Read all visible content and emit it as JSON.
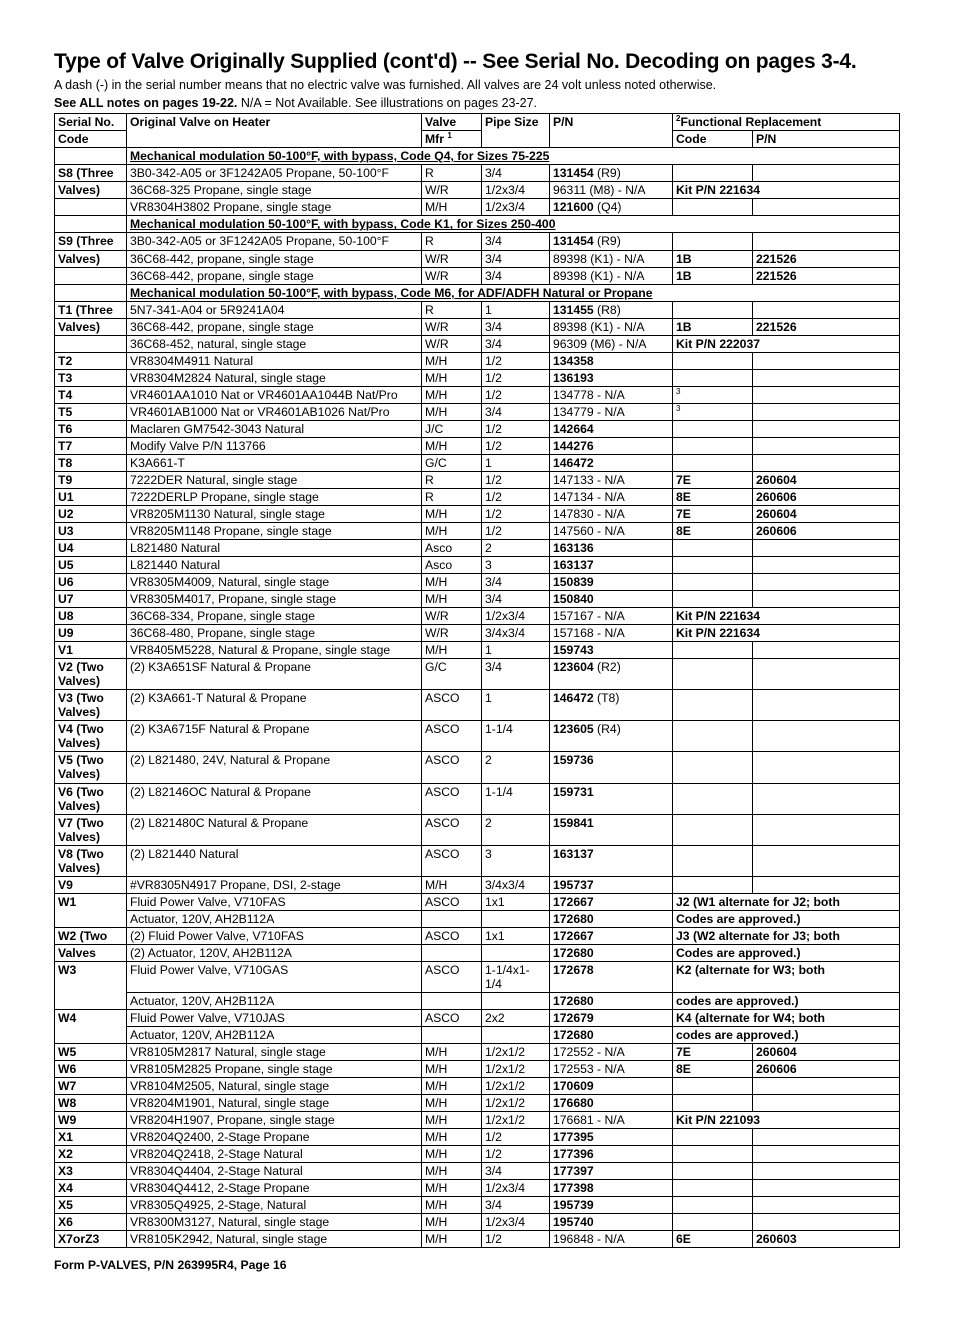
{
  "title": "Type of Valve Originally Supplied (cont'd) -- See Serial No. Decoding on pages 3-4.",
  "intro1": "A dash (-) in the serial number means that no electric valve was furnished. All valves are 24 volt unless noted otherwise.",
  "intro2_bold": "See ALL notes on pages 19-22.",
  "intro2_rest": " N/A = Not Available. See illustrations on pages 23-27.",
  "footer": "Form P-VALVES, P/N 263995R4, Page 16",
  "columns": {
    "c1a": "Serial No.",
    "c1b": "Code",
    "c2": "Original Valve on Heater",
    "c3a": "Valve",
    "c3b": "Mfr ",
    "c3sup": "1",
    "c4": "Pipe Size",
    "c5": "P/N",
    "c6top": "Functional Replacement",
    "c6sup": "2",
    "c6a": "Code",
    "c6b": "P/N"
  },
  "rows": [
    {
      "type": "section",
      "span": 6,
      "text": "Mechanical modulation 50-100°F, with bypass, Code Q4, for Sizes 75-225"
    },
    {
      "serial": "S8 (Three",
      "valve": "3B0-342-A05 or 3F1242A05 Propane, 50-100°F",
      "mfr": "R",
      "pipe": "3/4",
      "pn": "131454",
      "pnx": " (R9)",
      "fcode": "",
      "fpn": ""
    },
    {
      "serial": "Valves)",
      "valve": "36C68-325 Propane, single stage",
      "mfr": "W/R",
      "pipe": "1/2x3/4",
      "pn": "",
      "pnx": "96311 (M8) - N/A",
      "fcode": "Kit P/N 221634",
      "fpn": "",
      "mergeF": true
    },
    {
      "serial": "",
      "valve": "VR8304H3802 Propane, single stage",
      "mfr": "M/H",
      "pipe": "1/2x3/4",
      "pn": "121600",
      "pnx": " (Q4)",
      "fcode": "",
      "fpn": ""
    },
    {
      "type": "section",
      "span": 6,
      "text": "Mechanical modulation 50-100°F, with bypass, Code K1, for Sizes 250-400"
    },
    {
      "serial": "S9 (Three",
      "valve": "3B0-342-A05 or 3F1242A05 Propane, 50-100°F",
      "mfr": "R",
      "pipe": "3/4",
      "pn": "131454",
      "pnx": " (R9)",
      "fcode": "",
      "fpn": ""
    },
    {
      "serial": "Valves)",
      "valve": "36C68-442, propane, single stage",
      "mfr": "W/R",
      "pipe": "3/4",
      "pn": "",
      "pnx": "89398 (K1) - N/A",
      "fcode": "1B",
      "fpn": "221526"
    },
    {
      "serial": "",
      "valve": "36C68-442, propane, single stage",
      "mfr": "W/R",
      "pipe": "3/4",
      "pn": "",
      "pnx": "89398 (K1) - N/A",
      "fcode": "1B",
      "fpn": "221526"
    },
    {
      "type": "section",
      "span": 6,
      "text": "Mechanical modulation 50-100°F, with bypass, Code M6, for ADF/ADFH Natural or Propane"
    },
    {
      "serial": "T1 (Three",
      "valve": "5N7-341-A04 or 5R9241A04",
      "mfr": "R",
      "pipe": "1",
      "pn": "131455",
      "pnx": " (R8)",
      "fcode": "",
      "fpn": ""
    },
    {
      "serial": "Valves)",
      "valve": "36C68-442, propane, single stage",
      "mfr": "W/R",
      "pipe": "3/4",
      "pn": "",
      "pnx": "89398 (K1) - N/A",
      "fcode": "1B",
      "fpn": "221526"
    },
    {
      "serial": "",
      "valve": "36C68-452, natural, single stage",
      "mfr": "W/R",
      "pipe": "3/4",
      "pn": "",
      "pnx": "96309 (M6) - N/A",
      "fcode": "Kit P/N 222037",
      "fpn": "",
      "mergeF": true
    },
    {
      "serial": "T2",
      "valve": "VR8304M4911 Natural",
      "mfr": "M/H",
      "pipe": "1/2",
      "pn": "134358",
      "pnx": "",
      "fcode": "",
      "fpn": ""
    },
    {
      "serial": "T3",
      "valve": "VR8304M2824 Natural, single stage",
      "mfr": "M/H",
      "pipe": "1/2",
      "pn": "136193",
      "pnx": "",
      "fcode": "",
      "fpn": ""
    },
    {
      "serial": "T4",
      "valve": "VR4601AA1010 Nat or VR4601AA1044B Nat/Pro",
      "mfr": "M/H",
      "pipe": "1/2",
      "pn": "",
      "pnx": "134778 - N/A",
      "fcode": "3",
      "fcodeSup": true,
      "fpn": ""
    },
    {
      "serial": "T5",
      "valve": "VR4601AB1000 Nat or VR4601AB1026 Nat/Pro",
      "mfr": "M/H",
      "pipe": "3/4",
      "pn": "",
      "pnx": "134779 - N/A",
      "fcode": "3",
      "fcodeSup": true,
      "fpn": ""
    },
    {
      "serial": "T6",
      "valve": "Maclaren GM7542-3043 Natural",
      "mfr": "J/C",
      "pipe": "1/2",
      "pn": "142664",
      "pnx": "",
      "fcode": "",
      "fpn": ""
    },
    {
      "serial": "T7",
      "valve": "Modify Valve P/N 113766",
      "mfr": "M/H",
      "pipe": "1/2",
      "pn": "144276",
      "pnx": "",
      "fcode": "",
      "fpn": ""
    },
    {
      "serial": "T8",
      "valve": "K3A661-T",
      "mfr": "G/C",
      "pipe": "1",
      "pn": "146472",
      "pnx": "",
      "fcode": "",
      "fpn": ""
    },
    {
      "serial": "T9",
      "valve": "7222DER Natural, single stage",
      "mfr": "R",
      "pipe": "1/2",
      "pn": "",
      "pnx": "147133 - N/A",
      "fcode": "7E",
      "fpn": "260604"
    },
    {
      "serial": "U1",
      "valve": "7222DERLP Propane, single stage",
      "mfr": "R",
      "pipe": "1/2",
      "pn": "",
      "pnx": "147134 - N/A",
      "fcode": "8E",
      "fpn": "260606"
    },
    {
      "serial": "U2",
      "valve": "VR8205M1130 Natural, single stage",
      "mfr": "M/H",
      "pipe": "1/2",
      "pn": "",
      "pnx": "147830 - N/A",
      "fcode": "7E",
      "fpn": "260604"
    },
    {
      "serial": "U3",
      "valve": "VR8205M1148 Propane, single stage",
      "mfr": "M/H",
      "pipe": "1/2",
      "pn": "",
      "pnx": "147560 - N/A",
      "fcode": "8E",
      "fpn": "260606"
    },
    {
      "serial": "U4",
      "valve": "L821480 Natural",
      "mfr": "Asco",
      "pipe": "2",
      "pn": "163136",
      "pnx": "",
      "fcode": "",
      "fpn": ""
    },
    {
      "serial": "U5",
      "valve": "L821440 Natural",
      "mfr": "Asco",
      "pipe": "3",
      "pn": "163137",
      "pnx": "",
      "fcode": "",
      "fpn": ""
    },
    {
      "serial": "U6",
      "valve": "VR8305M4009, Natural, single stage",
      "mfr": "M/H",
      "pipe": "3/4",
      "pn": "150839",
      "pnx": "",
      "fcode": "",
      "fpn": ""
    },
    {
      "serial": "U7",
      "valve": "VR8305M4017, Propane, single stage",
      "mfr": "M/H",
      "pipe": "3/4",
      "pn": "150840",
      "pnx": "",
      "fcode": "",
      "fpn": ""
    },
    {
      "serial": "U8",
      "valve": "36C68-334, Propane, single stage",
      "mfr": "W/R",
      "pipe": "1/2x3/4",
      "pn": "",
      "pnx": "157167 - N/A",
      "fcode": "Kit P/N 221634",
      "fpn": "",
      "mergeF": true
    },
    {
      "serial": "U9",
      "valve": "36C68-480, Propane, single stage",
      "mfr": "W/R",
      "pipe": "3/4x3/4",
      "pn": "",
      "pnx": "157168 - N/A",
      "fcode": "Kit P/N 221634",
      "fpn": "",
      "mergeF": true
    },
    {
      "serial": "V1",
      "valve": "VR8405M5228, Natural & Propane, single stage",
      "mfr": "M/H",
      "pipe": "1",
      "pn": "159743",
      "pnx": "",
      "fcode": "",
      "fpn": ""
    },
    {
      "serial": "V2 (Two Valves)",
      "valve": "(2) K3A651SF Natural & Propane",
      "mfr": "G/C",
      "pipe": "3/4",
      "pn": "123604",
      "pnx": " (R2)",
      "fcode": "",
      "fpn": ""
    },
    {
      "serial": "V3 (Two Valves)",
      "valve": "(2) K3A661-T Natural & Propane",
      "mfr": "ASCO",
      "pipe": "1",
      "pn": "146472",
      "pnx": " (T8)",
      "fcode": "",
      "fpn": ""
    },
    {
      "serial": "V4 (Two Valves)",
      "valve": "(2) K3A6715F Natural & Propane",
      "mfr": "ASCO",
      "pipe": "1-1/4",
      "pn": "123605",
      "pnx": " (R4)",
      "fcode": "",
      "fpn": ""
    },
    {
      "serial": "V5 (Two Valves)",
      "valve": "(2) L821480, 24V, Natural & Propane",
      "mfr": "ASCO",
      "pipe": "2",
      "pn": "159736",
      "pnx": "",
      "fcode": "",
      "fpn": ""
    },
    {
      "serial": "V6 (Two Valves)",
      "valve": "(2) L82146OC Natural & Propane",
      "mfr": "ASCO",
      "pipe": "1-1/4",
      "pn": "159731",
      "pnx": "",
      "fcode": "",
      "fpn": ""
    },
    {
      "serial": "V7 (Two Valves)",
      "valve": "(2) L821480C Natural & Propane",
      "mfr": "ASCO",
      "pipe": "2",
      "pn": "159841",
      "pnx": "",
      "fcode": "",
      "fpn": ""
    },
    {
      "serial": "V8 (Two Valves)",
      "valve": "(2) L821440 Natural",
      "mfr": "ASCO",
      "pipe": "3",
      "pn": "163137",
      "pnx": "",
      "fcode": "",
      "fpn": ""
    },
    {
      "serial": "V9",
      "valve": "#VR8305N4917 Propane, DSI, 2-stage",
      "mfr": "M/H",
      "pipe": "3/4x3/4",
      "pn": "195737",
      "pnx": "",
      "fcode": "",
      "fpn": ""
    },
    {
      "serial": "W1",
      "serialRowspan": 2,
      "valve": "Fluid Power Valve, V710FAS",
      "mfr": "ASCO",
      "pipe": "1x1",
      "pn": "172667",
      "pnx": "",
      "fcode": "J2 (W1 alternate for J2; both",
      "fpn": "",
      "mergeF": true
    },
    {
      "noSerial": true,
      "valve": "Actuator, 120V, AH2B112A",
      "mfr": "",
      "pipe": "",
      "pn": "172680",
      "pnx": "",
      "fcode": "Codes are approved.)",
      "fpn": "",
      "mergeF": true
    },
    {
      "serial": "W2 (Two",
      "valve": "(2) Fluid Power Valve, V710FAS",
      "mfr": "ASCO",
      "pipe": "1x1",
      "pn": "172667",
      "pnx": "",
      "fcode": "J3 (W2 alternate for J3; both",
      "fpn": "",
      "mergeF": true
    },
    {
      "serial": "Valves",
      "valve": "(2) Actuator, 120V, AH2B112A",
      "mfr": "",
      "pipe": "",
      "pn": "172680",
      "pnx": "",
      "fcode": "Codes are approved.)",
      "fpn": "",
      "mergeF": true
    },
    {
      "serial": "W3",
      "serialRowspan": 2,
      "valve": "Fluid Power Valve, V710GAS",
      "mfr": "ASCO",
      "pipe": "1-1/4x1-1/4",
      "pn": "172678",
      "pnx": "",
      "fcode": "K2 (alternate for W3; both",
      "fpn": "",
      "mergeF": true
    },
    {
      "noSerial": true,
      "valve": "Actuator, 120V, AH2B112A",
      "mfr": "",
      "pipe": "",
      "pn": "172680",
      "pnx": "",
      "fcode": "codes are approved.)",
      "fpn": "",
      "mergeF": true
    },
    {
      "serial": "W4",
      "serialRowspan": 2,
      "valve": "Fluid Power Valve, V710JAS",
      "mfr": "ASCO",
      "pipe": "2x2",
      "pn": "172679",
      "pnx": "",
      "fcode": "K4 (alternate for W4; both",
      "fpn": "",
      "mergeF": true
    },
    {
      "noSerial": true,
      "valve": "Actuator, 120V, AH2B112A",
      "mfr": "",
      "pipe": "",
      "pn": "172680",
      "pnx": "",
      "fcode": "codes are approved.)",
      "fpn": "",
      "mergeF": true
    },
    {
      "serial": "W5",
      "valve": "VR8105M2817 Natural, single stage",
      "mfr": "M/H",
      "pipe": "1/2x1/2",
      "pn": "",
      "pnx": "172552 - N/A",
      "fcode": "7E",
      "fpn": "260604"
    },
    {
      "serial": "W6",
      "valve": "VR8105M2825 Propane, single stage",
      "mfr": "M/H",
      "pipe": "1/2x1/2",
      "pn": "",
      "pnx": "172553 - N/A",
      "fcode": "8E",
      "fpn": "260606"
    },
    {
      "serial": "W7",
      "valve": "VR8104M2505, Natural, single stage",
      "mfr": "M/H",
      "pipe": "1/2x1/2",
      "pn": "170609",
      "pnx": "",
      "fcode": "",
      "fpn": ""
    },
    {
      "serial": "W8",
      "valve": "VR8204M1901, Natural, single stage",
      "mfr": "M/H",
      "pipe": "1/2x1/2",
      "pn": "176680",
      "pnx": "",
      "fcode": "",
      "fpn": ""
    },
    {
      "serial": "W9",
      "valve": "VR8204H1907, Propane, single stage",
      "mfr": "M/H",
      "pipe": "1/2x1/2",
      "pn": "",
      "pnx": "176681 - N/A",
      "fcode": "Kit P/N 221093",
      "fpn": "",
      "mergeF": true
    },
    {
      "serial": "X1",
      "valve": "VR8204Q2400, 2-Stage Propane",
      "mfr": "M/H",
      "pipe": "1/2",
      "pn": "177395",
      "pnx": "",
      "fcode": "",
      "fpn": ""
    },
    {
      "serial": "X2",
      "valve": "VR8204Q2418, 2-Stage Natural",
      "mfr": "M/H",
      "pipe": "1/2",
      "pn": "177396",
      "pnx": "",
      "fcode": "",
      "fpn": ""
    },
    {
      "serial": "X3",
      "valve": "VR8304Q4404, 2-Stage Natural",
      "mfr": "M/H",
      "pipe": "3/4",
      "pn": "177397",
      "pnx": "",
      "fcode": "",
      "fpn": ""
    },
    {
      "serial": "X4",
      "valve": "VR8304Q4412, 2-Stage Propane",
      "mfr": "M/H",
      "pipe": "1/2x3/4",
      "pn": "177398",
      "pnx": "",
      "fcode": "",
      "fpn": ""
    },
    {
      "serial": "X5",
      "valve": "VR8305Q4925, 2-Stage, Natural",
      "mfr": "M/H",
      "pipe": "3/4",
      "pn": "195739",
      "pnx": "",
      "fcode": "",
      "fpn": ""
    },
    {
      "serial": "X6",
      "valve": "VR8300M3127, Natural, single stage",
      "mfr": "M/H",
      "pipe": "1/2x3/4",
      "pn": "195740",
      "pnx": "",
      "fcode": "",
      "fpn": ""
    },
    {
      "serial": "X7orZ3",
      "valve": "VR8105K2942, Natural, single stage",
      "mfr": "M/H",
      "pipe": "1/2",
      "pn": "",
      "pnx": "196848 - N/A",
      "fcode": "6E",
      "fpn": "260603"
    }
  ]
}
